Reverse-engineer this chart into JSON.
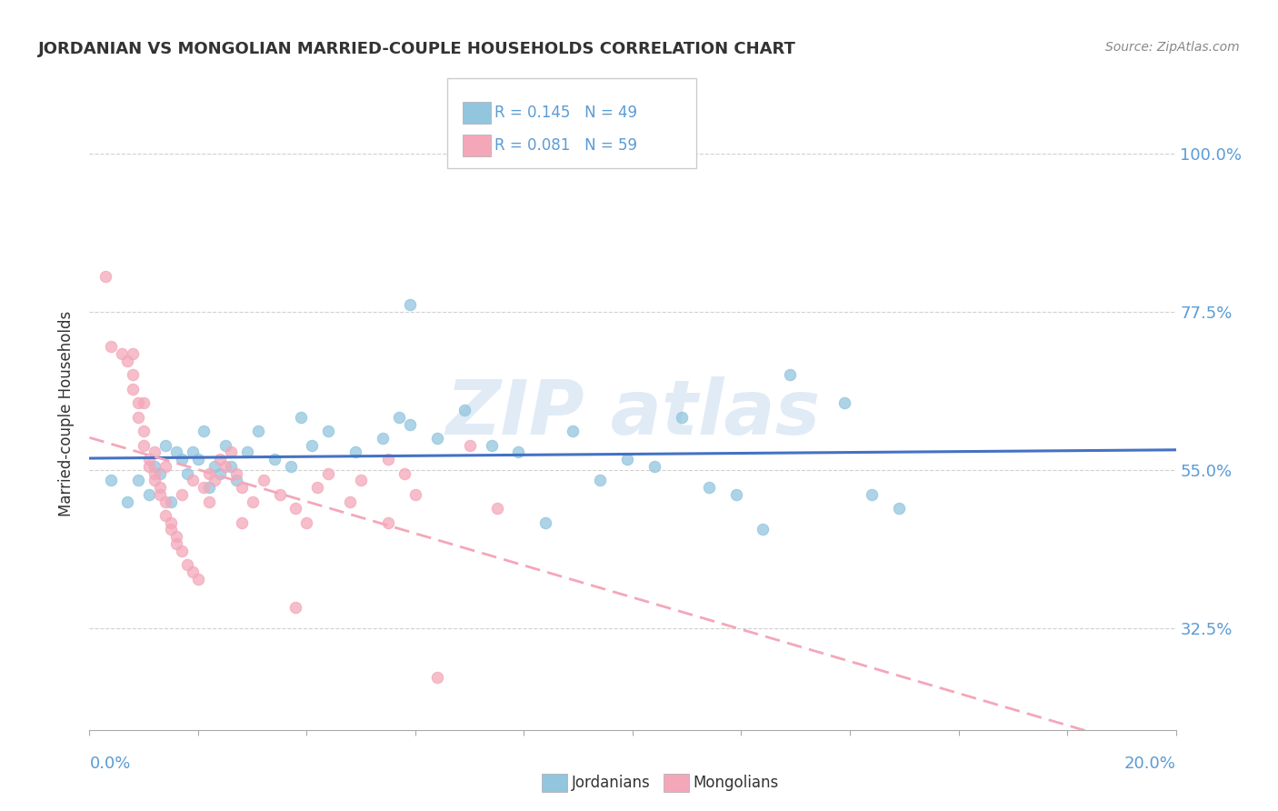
{
  "title": "JORDANIAN VS MONGOLIAN MARRIED-COUPLE HOUSEHOLDS CORRELATION CHART",
  "source": "Source: ZipAtlas.com",
  "ylabel": "Married-couple Households",
  "ytick_labels": [
    "32.5%",
    "55.0%",
    "77.5%",
    "100.0%"
  ],
  "ytick_values": [
    0.325,
    0.55,
    0.775,
    1.0
  ],
  "xlim": [
    0.0,
    0.2
  ],
  "ylim": [
    0.18,
    1.08
  ],
  "legend_text_jordan": "R = 0.145   N = 49",
  "legend_text_mongol": "R = 0.081   N = 59",
  "jordan_color": "#92C5DE",
  "mongol_color": "#F4A7B9",
  "jordan_line_color": "#4472C4",
  "mongol_line_color": "#F4A7B9",
  "label_color": "#5B9BD5",
  "text_color": "#333333",
  "grid_color": "#CCCCCC",
  "background_color": "#FFFFFF",
  "jordan_points": [
    [
      0.004,
      0.535
    ],
    [
      0.007,
      0.505
    ],
    [
      0.009,
      0.535
    ],
    [
      0.011,
      0.515
    ],
    [
      0.012,
      0.555
    ],
    [
      0.014,
      0.585
    ],
    [
      0.015,
      0.505
    ],
    [
      0.017,
      0.565
    ],
    [
      0.018,
      0.545
    ],
    [
      0.019,
      0.575
    ],
    [
      0.021,
      0.605
    ],
    [
      0.022,
      0.525
    ],
    [
      0.023,
      0.555
    ],
    [
      0.024,
      0.545
    ],
    [
      0.025,
      0.585
    ],
    [
      0.027,
      0.535
    ],
    [
      0.013,
      0.545
    ],
    [
      0.016,
      0.575
    ],
    [
      0.02,
      0.565
    ],
    [
      0.026,
      0.555
    ],
    [
      0.029,
      0.575
    ],
    [
      0.031,
      0.605
    ],
    [
      0.034,
      0.565
    ],
    [
      0.037,
      0.555
    ],
    [
      0.039,
      0.625
    ],
    [
      0.041,
      0.585
    ],
    [
      0.044,
      0.605
    ],
    [
      0.049,
      0.575
    ],
    [
      0.054,
      0.595
    ],
    [
      0.057,
      0.625
    ],
    [
      0.059,
      0.615
    ],
    [
      0.064,
      0.595
    ],
    [
      0.069,
      0.635
    ],
    [
      0.074,
      0.585
    ],
    [
      0.079,
      0.575
    ],
    [
      0.084,
      0.475
    ],
    [
      0.089,
      0.605
    ],
    [
      0.094,
      0.535
    ],
    [
      0.099,
      0.565
    ],
    [
      0.104,
      0.555
    ],
    [
      0.109,
      0.625
    ],
    [
      0.114,
      0.525
    ],
    [
      0.119,
      0.515
    ],
    [
      0.124,
      0.465
    ],
    [
      0.129,
      0.685
    ],
    [
      0.139,
      0.645
    ],
    [
      0.144,
      0.515
    ],
    [
      0.149,
      0.495
    ],
    [
      0.059,
      0.785
    ]
  ],
  "mongol_points": [
    [
      0.003,
      0.825
    ],
    [
      0.004,
      0.725
    ],
    [
      0.006,
      0.715
    ],
    [
      0.007,
      0.705
    ],
    [
      0.008,
      0.685
    ],
    [
      0.008,
      0.665
    ],
    [
      0.009,
      0.645
    ],
    [
      0.009,
      0.625
    ],
    [
      0.01,
      0.605
    ],
    [
      0.01,
      0.585
    ],
    [
      0.011,
      0.565
    ],
    [
      0.011,
      0.555
    ],
    [
      0.012,
      0.545
    ],
    [
      0.012,
      0.535
    ],
    [
      0.013,
      0.525
    ],
    [
      0.013,
      0.515
    ],
    [
      0.014,
      0.505
    ],
    [
      0.014,
      0.485
    ],
    [
      0.015,
      0.475
    ],
    [
      0.015,
      0.465
    ],
    [
      0.016,
      0.455
    ],
    [
      0.016,
      0.445
    ],
    [
      0.017,
      0.435
    ],
    [
      0.018,
      0.415
    ],
    [
      0.019,
      0.405
    ],
    [
      0.02,
      0.395
    ],
    [
      0.021,
      0.525
    ],
    [
      0.022,
      0.545
    ],
    [
      0.023,
      0.535
    ],
    [
      0.024,
      0.565
    ],
    [
      0.025,
      0.555
    ],
    [
      0.026,
      0.575
    ],
    [
      0.027,
      0.545
    ],
    [
      0.028,
      0.525
    ],
    [
      0.03,
      0.505
    ],
    [
      0.032,
      0.535
    ],
    [
      0.035,
      0.515
    ],
    [
      0.038,
      0.495
    ],
    [
      0.04,
      0.475
    ],
    [
      0.042,
      0.525
    ],
    [
      0.044,
      0.545
    ],
    [
      0.048,
      0.505
    ],
    [
      0.05,
      0.535
    ],
    [
      0.055,
      0.565
    ],
    [
      0.058,
      0.545
    ],
    [
      0.06,
      0.515
    ],
    [
      0.064,
      0.255
    ],
    [
      0.07,
      0.585
    ],
    [
      0.008,
      0.715
    ],
    [
      0.01,
      0.645
    ],
    [
      0.012,
      0.575
    ],
    [
      0.014,
      0.555
    ],
    [
      0.017,
      0.515
    ],
    [
      0.019,
      0.535
    ],
    [
      0.022,
      0.505
    ],
    [
      0.028,
      0.475
    ],
    [
      0.038,
      0.355
    ],
    [
      0.055,
      0.475
    ],
    [
      0.075,
      0.495
    ]
  ]
}
